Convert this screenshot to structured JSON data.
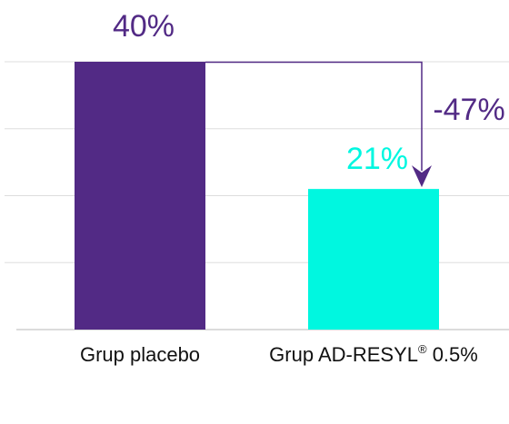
{
  "chart_data": {
    "type": "bar",
    "categories": [
      "Grup placebo",
      "Grup AD-RESYL"
    ],
    "category_superscripts": [
      "",
      "®"
    ],
    "category_suffixes": [
      "",
      " 0.5%"
    ],
    "values": [
      40,
      21
    ],
    "value_labels": [
      "40%",
      "21%"
    ],
    "colors": [
      "#522a85",
      "#00f7e0"
    ],
    "annotation": {
      "text": "-47%",
      "color": "#522a85",
      "from": 0,
      "to": 1
    },
    "grid": true,
    "ylim": [
      0,
      40
    ]
  }
}
